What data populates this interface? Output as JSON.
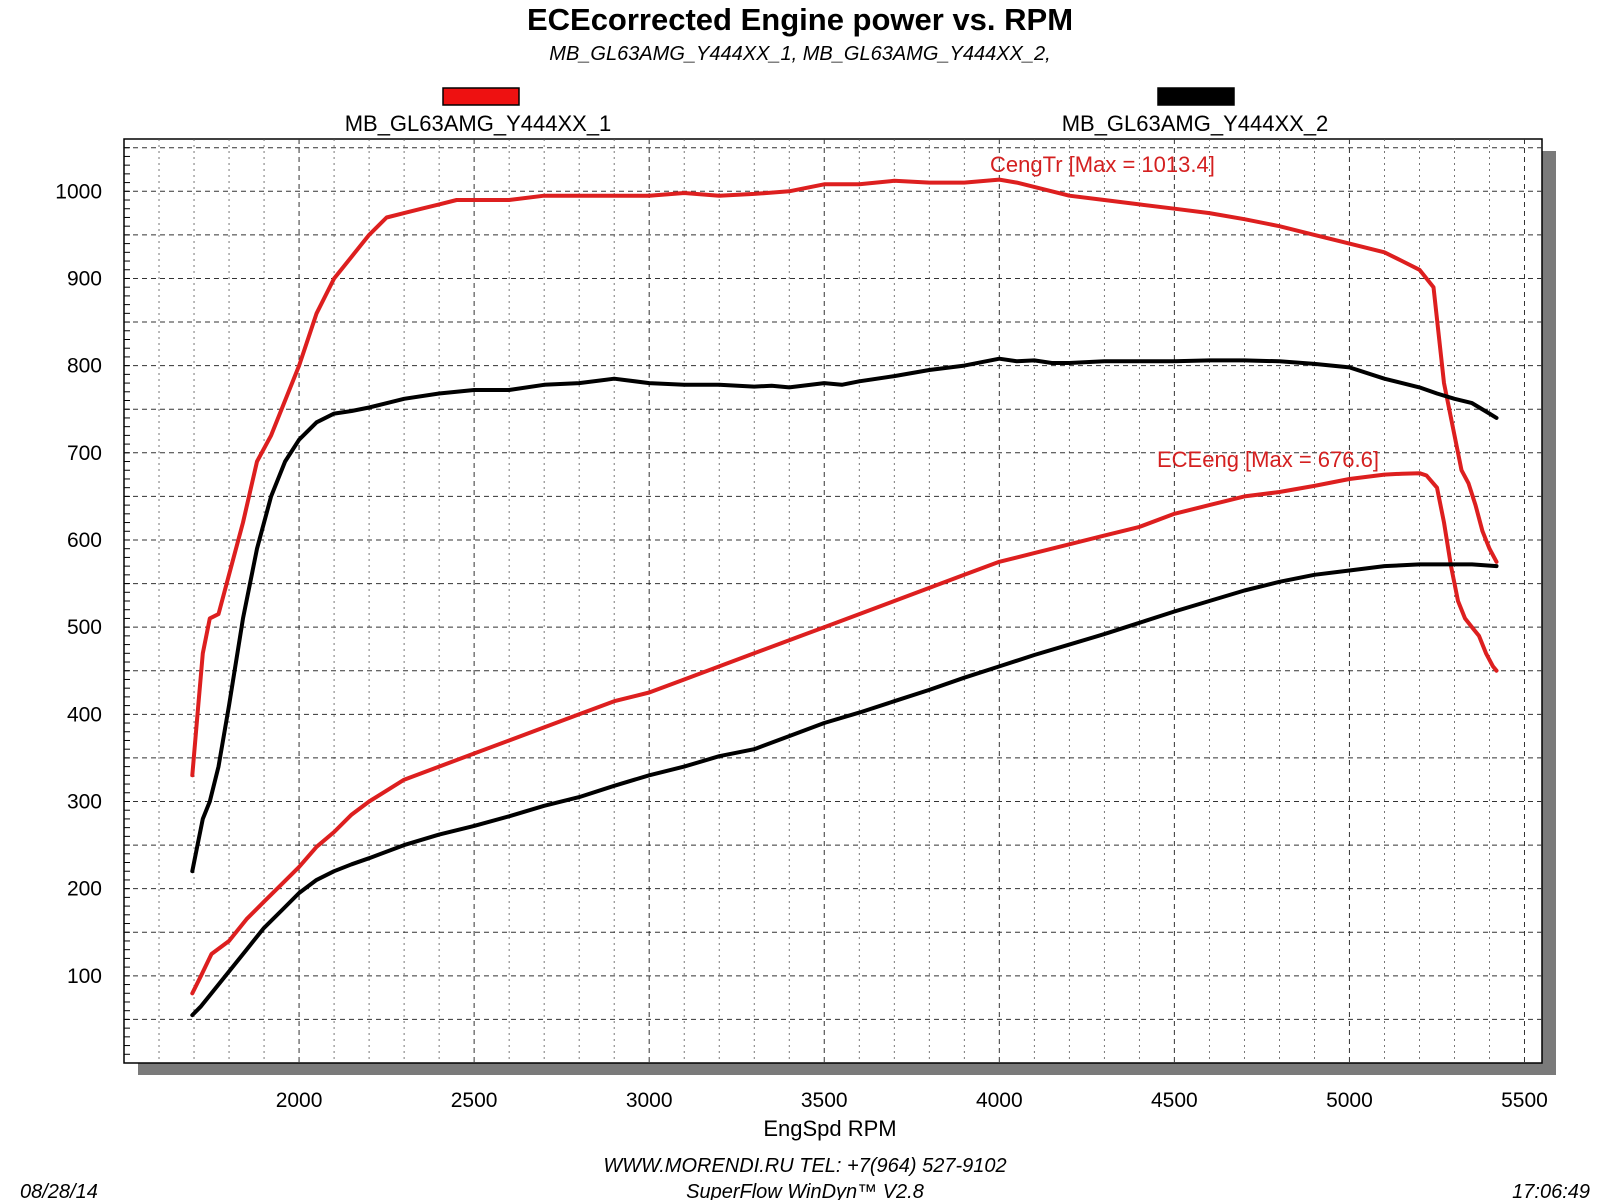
{
  "chart_data": {
    "type": "line",
    "title": "ECEcorrected Engine power vs. RPM",
    "subtitle": "MB_GL63AMG_Y444XX_1, MB_GL63AMG_Y444XX_2,",
    "xlabel": "EngSpd  RPM",
    "ylabel": "",
    "xlim": [
      1500,
      5550
    ],
    "ylim": [
      0,
      1060
    ],
    "xticks": [
      2000,
      2500,
      3000,
      3500,
      4000,
      4500,
      5000,
      5500
    ],
    "yticks": [
      100,
      200,
      300,
      400,
      500,
      600,
      700,
      800,
      900,
      1000
    ],
    "grid": true,
    "legend": [
      {
        "label": "MB_GL63AMG_Y444XX_1",
        "color": "#ee1111"
      },
      {
        "label": "MB_GL63AMG_Y444XX_2",
        "color": "#000000"
      }
    ],
    "annotations": {
      "torque_max": "CengTr [Max = 1013.4]",
      "power_max": "ECEeng [Max = 676.6]"
    },
    "series": [
      {
        "run": "MB_GL63AMG_Y444XX_1",
        "quantity": "CengTr",
        "color": "#dd1f1f",
        "x": [
          1695,
          1710,
          1725,
          1745,
          1770,
          1800,
          1840,
          1880,
          1920,
          1960,
          2000,
          2050,
          2100,
          2150,
          2200,
          2250,
          2300,
          2350,
          2400,
          2450,
          2500,
          2600,
          2700,
          2800,
          2900,
          3000,
          3100,
          3200,
          3300,
          3400,
          3500,
          3600,
          3700,
          3800,
          3900,
          4000,
          4050,
          4100,
          4200,
          4300,
          4400,
          4500,
          4600,
          4700,
          4800,
          4900,
          5000,
          5100,
          5150,
          5200,
          5240,
          5270,
          5300,
          5320,
          5340,
          5360,
          5380,
          5400,
          5420
        ],
        "y": [
          330,
          400,
          470,
          510,
          515,
          560,
          620,
          690,
          720,
          760,
          800,
          860,
          900,
          925,
          950,
          970,
          975,
          980,
          985,
          990,
          990,
          990,
          995,
          995,
          995,
          995,
          998,
          995,
          997,
          1000,
          1008,
          1008,
          1012,
          1010,
          1010,
          1013.4,
          1010,
          1005,
          995,
          990,
          985,
          980,
          975,
          968,
          960,
          950,
          940,
          930,
          920,
          910,
          890,
          780,
          720,
          680,
          665,
          640,
          610,
          590,
          575
        ]
      },
      {
        "run": "MB_GL63AMG_Y444XX_2",
        "quantity": "CengTr",
        "color": "#000000",
        "x": [
          1695,
          1710,
          1725,
          1745,
          1770,
          1800,
          1840,
          1880,
          1920,
          1960,
          2000,
          2050,
          2100,
          2150,
          2200,
          2300,
          2400,
          2500,
          2600,
          2700,
          2800,
          2900,
          3000,
          3100,
          3200,
          3300,
          3350,
          3400,
          3500,
          3550,
          3600,
          3700,
          3800,
          3900,
          4000,
          4050,
          4100,
          4150,
          4200,
          4300,
          4400,
          4500,
          4600,
          4700,
          4800,
          4900,
          5000,
          5100,
          5200,
          5250,
          5300,
          5350,
          5400,
          5420
        ],
        "y": [
          220,
          250,
          280,
          300,
          340,
          410,
          510,
          590,
          650,
          690,
          715,
          735,
          745,
          748,
          752,
          762,
          768,
          772,
          772,
          778,
          780,
          785,
          780,
          778,
          778,
          776,
          777,
          775,
          780,
          778,
          782,
          788,
          795,
          800,
          808,
          805,
          806,
          803,
          803,
          805,
          805,
          805,
          806,
          806,
          805,
          802,
          798,
          785,
          775,
          768,
          762,
          757,
          745,
          740
        ]
      },
      {
        "run": "MB_GL63AMG_Y444XX_1",
        "quantity": "ECEeng",
        "color": "#dd1f1f",
        "x": [
          1695,
          1720,
          1750,
          1800,
          1850,
          1900,
          1950,
          2000,
          2050,
          2100,
          2150,
          2200,
          2300,
          2400,
          2500,
          2600,
          2700,
          2800,
          2900,
          3000,
          3100,
          3200,
          3300,
          3400,
          3500,
          3600,
          3700,
          3800,
          3900,
          4000,
          4100,
          4200,
          4300,
          4400,
          4500,
          4600,
          4700,
          4800,
          4900,
          5000,
          5100,
          5150,
          5200,
          5220,
          5250,
          5270,
          5290,
          5310,
          5330,
          5350,
          5370,
          5390,
          5410,
          5420
        ],
        "y": [
          80,
          100,
          125,
          140,
          165,
          185,
          205,
          225,
          248,
          265,
          285,
          300,
          325,
          340,
          355,
          370,
          385,
          400,
          415,
          425,
          440,
          455,
          470,
          485,
          500,
          515,
          530,
          545,
          560,
          575,
          585,
          595,
          605,
          615,
          630,
          640,
          650,
          655,
          662,
          670,
          675,
          676,
          676.6,
          674,
          660,
          620,
          570,
          530,
          510,
          500,
          490,
          470,
          455,
          450
        ]
      },
      {
        "run": "MB_GL63AMG_Y444XX_2",
        "quantity": "ECEeng",
        "color": "#000000",
        "x": [
          1695,
          1720,
          1750,
          1800,
          1850,
          1900,
          1950,
          2000,
          2050,
          2100,
          2150,
          2200,
          2300,
          2400,
          2500,
          2600,
          2700,
          2800,
          2900,
          3000,
          3100,
          3200,
          3300,
          3400,
          3500,
          3600,
          3700,
          3800,
          3900,
          4000,
          4100,
          4200,
          4300,
          4400,
          4500,
          4600,
          4700,
          4800,
          4900,
          5000,
          5100,
          5200,
          5300,
          5350,
          5420
        ],
        "y": [
          55,
          65,
          80,
          105,
          130,
          155,
          175,
          195,
          210,
          220,
          228,
          235,
          250,
          262,
          272,
          283,
          295,
          305,
          318,
          330,
          340,
          352,
          360,
          375,
          390,
          402,
          415,
          428,
          442,
          455,
          468,
          480,
          492,
          505,
          518,
          530,
          542,
          552,
          560,
          565,
          570,
          572,
          572,
          572,
          570
        ]
      }
    ]
  },
  "footer": {
    "website": "WWW.MORENDI.RU    TEL: +7(964) 527-9102",
    "software": "SuperFlow WinDyn™ V2.8",
    "date": "08/28/14",
    "time": "17:06:49"
  }
}
